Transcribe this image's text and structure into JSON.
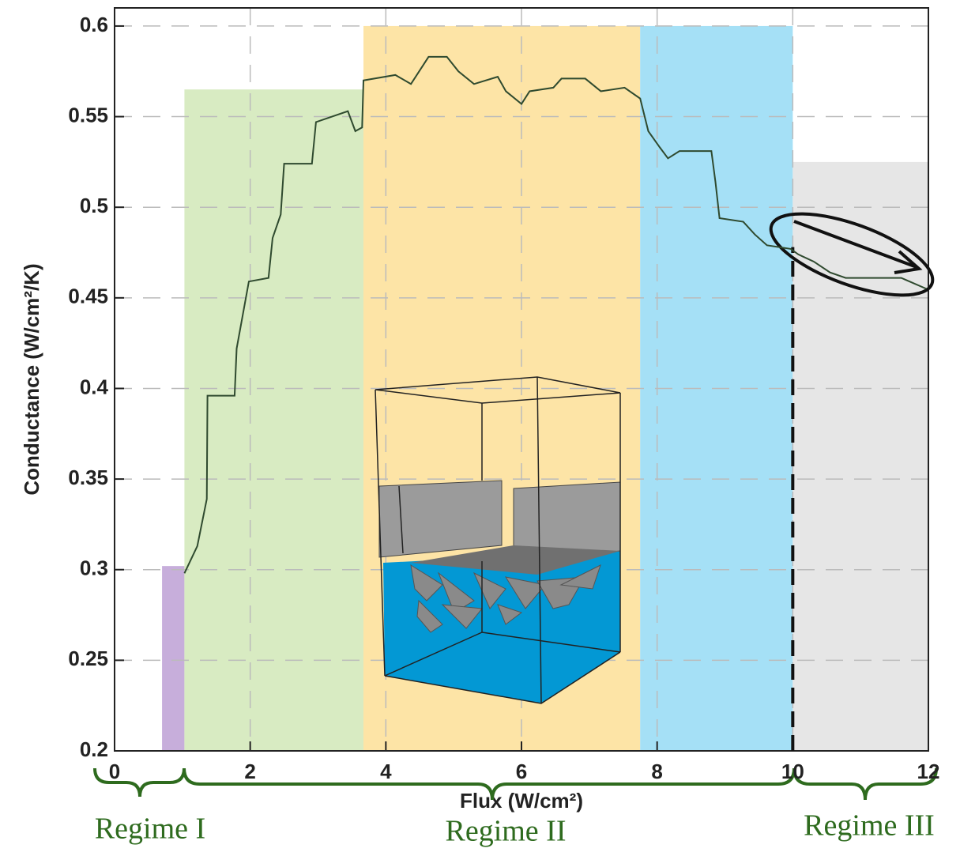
{
  "chart_data": {
    "type": "line",
    "xlabel": "Flux (W/cm²)",
    "ylabel": "Conductance (W/cm²/K)",
    "xlim": [
      0,
      12
    ],
    "ylim": [
      0.2,
      0.61
    ],
    "xticks": [
      0,
      2,
      4,
      6,
      8,
      10,
      12
    ],
    "yticks": [
      0.2,
      0.25,
      0.3,
      0.35,
      0.4,
      0.45,
      0.5,
      0.55,
      0.6
    ],
    "grid": true,
    "regions": [
      {
        "x0": 0.7,
        "x1": 1.03,
        "top": 0.302,
        "color": "#c7aedb"
      },
      {
        "x0": 1.03,
        "x1": 3.67,
        "top": 0.565,
        "color": "#d8ebc2"
      },
      {
        "x0": 3.67,
        "x1": 7.75,
        "top": 0.6,
        "color": "#fde4a6"
      },
      {
        "x0": 7.75,
        "x1": 10.0,
        "top": 0.6,
        "color": "#a5e0f6"
      },
      {
        "x0": 10.0,
        "x1": 12.0,
        "top": 0.525,
        "color": "#e6e6e6"
      }
    ],
    "vline": {
      "x": 10,
      "top": 0.478
    },
    "series": [
      {
        "color": "#2f4a2f",
        "x": [
          1.03,
          1.22,
          1.36,
          1.37,
          1.77,
          1.8,
          1.98,
          2.27,
          2.33,
          2.45,
          2.5,
          2.91,
          2.97,
          3.44,
          3.55,
          3.65,
          3.67,
          4.14,
          4.37,
          4.63,
          4.9,
          5.07,
          5.3,
          5.65,
          5.77,
          6.0,
          6.12,
          6.47,
          6.59,
          6.94,
          7.17,
          7.52,
          7.75,
          7.87,
          8.04,
          8.16,
          8.33,
          8.8,
          8.86,
          8.92,
          9.27,
          9.44,
          9.62,
          9.97,
          10.08,
          10.31,
          10.55,
          10.78,
          11.6,
          11.97
        ],
        "values": [
          0.298,
          0.313,
          0.339,
          0.396,
          0.396,
          0.422,
          0.459,
          0.461,
          0.483,
          0.496,
          0.524,
          0.524,
          0.547,
          0.553,
          0.542,
          0.544,
          0.57,
          0.573,
          0.568,
          0.583,
          0.583,
          0.575,
          0.568,
          0.572,
          0.564,
          0.557,
          0.564,
          0.566,
          0.571,
          0.571,
          0.564,
          0.566,
          0.56,
          0.542,
          0.533,
          0.527,
          0.531,
          0.531,
          0.514,
          0.494,
          0.492,
          0.485,
          0.479,
          0.477,
          0.474,
          0.47,
          0.464,
          0.461,
          0.461,
          0.455
        ]
      }
    ],
    "regimes": [
      "Regime I",
      "Regime II",
      "Regime III"
    ]
  }
}
